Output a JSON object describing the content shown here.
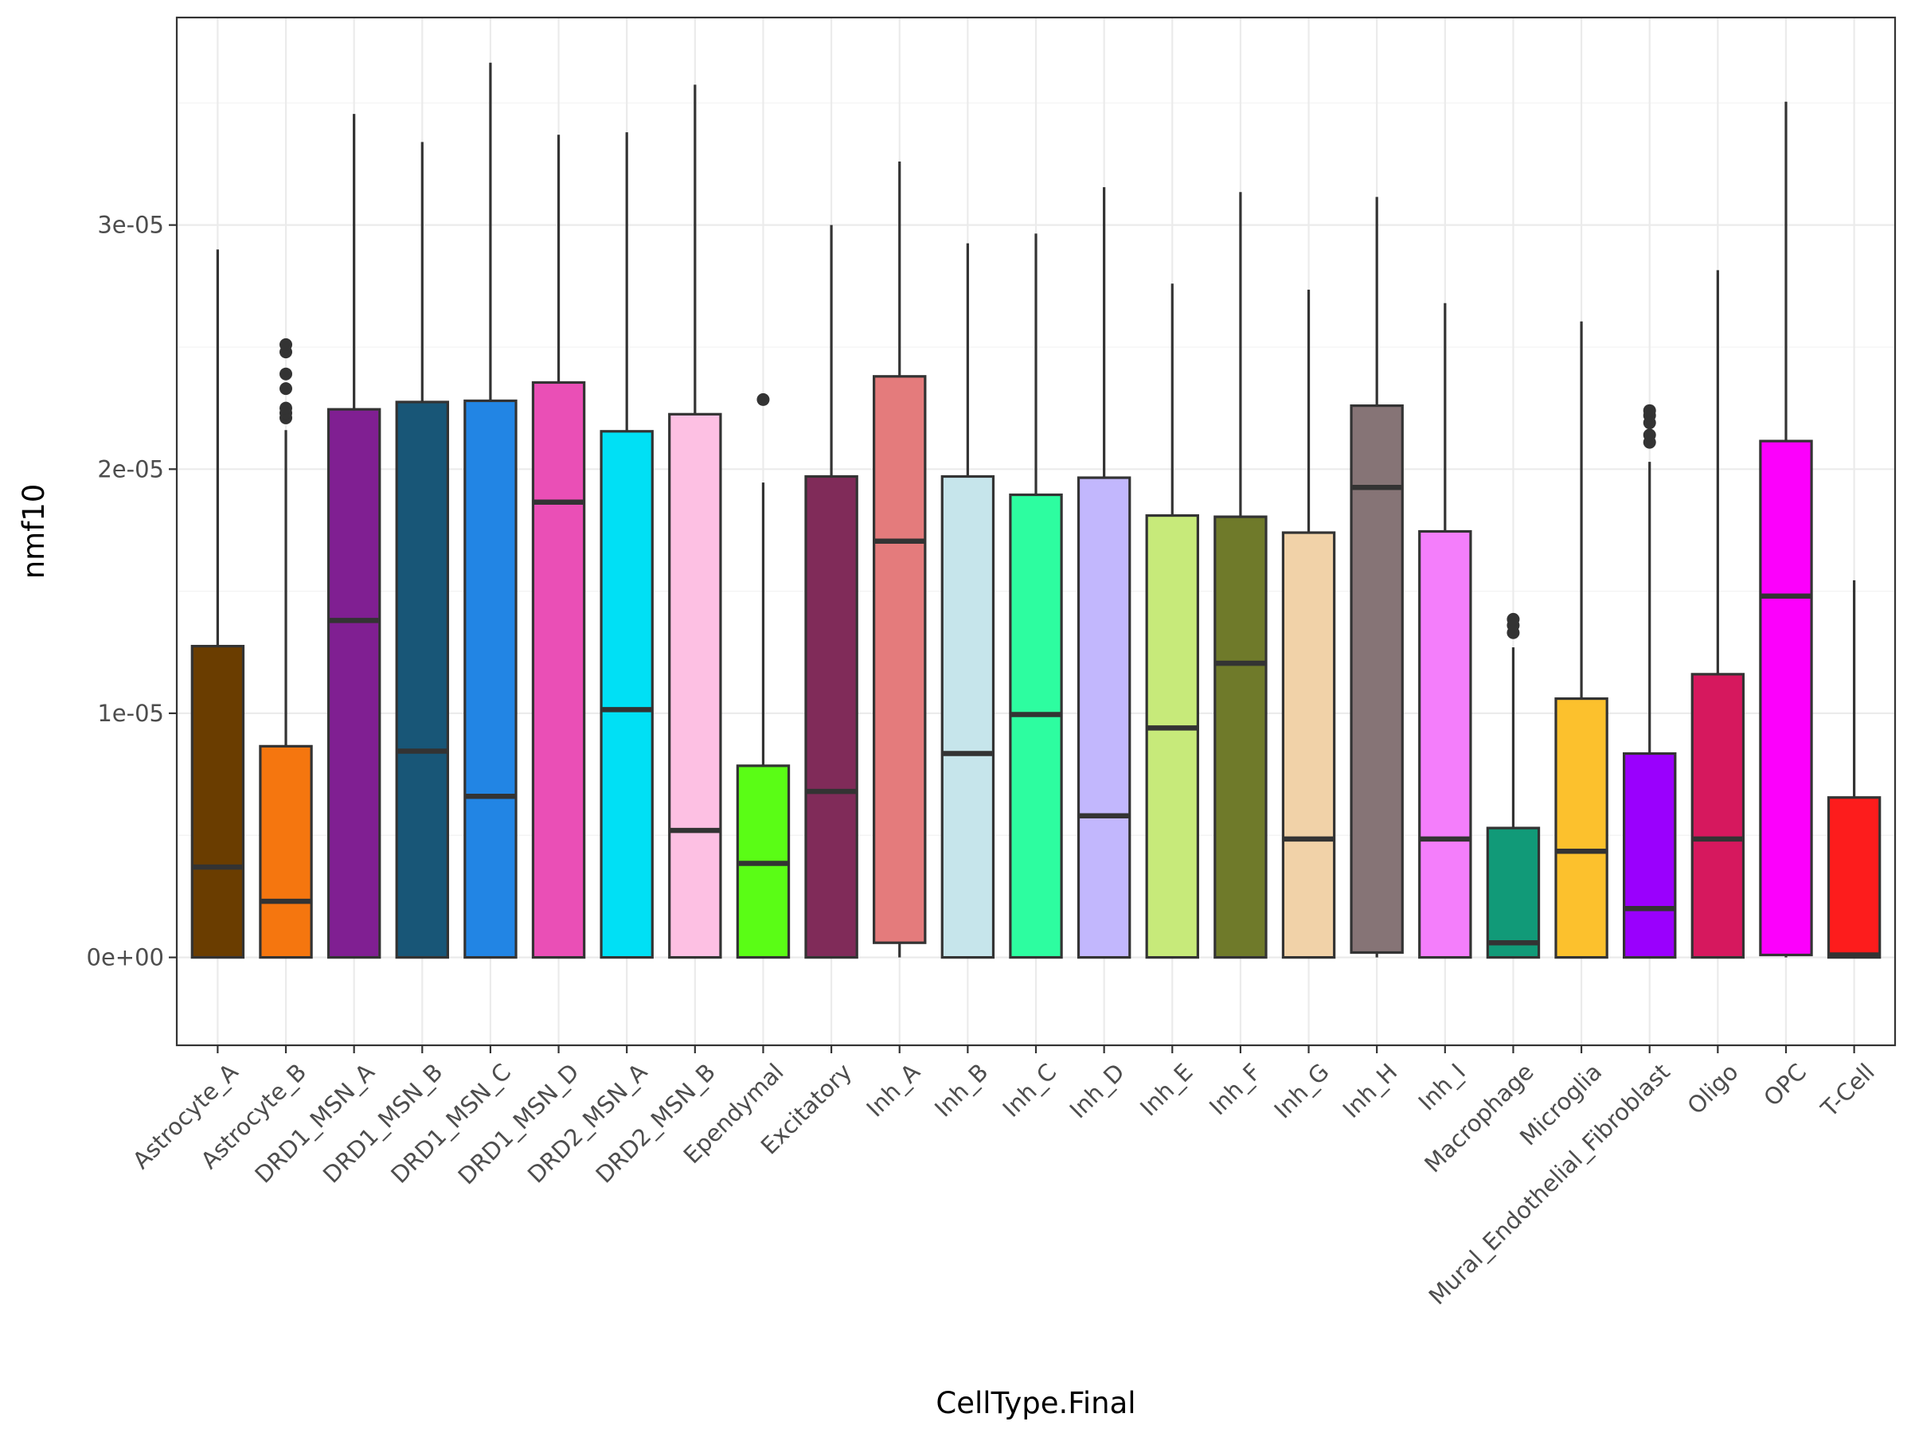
{
  "chart_data": {
    "type": "box",
    "xlabel": "CellType.Final",
    "ylabel": "nmf10",
    "ylim": [
      -3.6e-06,
      3.85e-05
    ],
    "yticks": [
      {
        "value": 0,
        "label": "0e+00"
      },
      {
        "value": 1e-05,
        "label": "1e-05"
      },
      {
        "value": 2e-05,
        "label": "2e-05"
      },
      {
        "value": 3e-05,
        "label": "3e-05"
      }
    ],
    "grid": true,
    "categories": [
      {
        "label": "Astrocyte_A",
        "color": "#6A3D00",
        "whisker_low": 0,
        "q1": 0,
        "median": 3.7e-06,
        "q3": 1.275e-05,
        "whisker_high": 2.9e-05,
        "outliers": []
      },
      {
        "label": "Astrocyte_B",
        "color": "#F5760F",
        "whisker_low": 0,
        "q1": 0,
        "median": 2.3e-06,
        "q3": 8.65e-06,
        "whisker_high": 2.16e-05,
        "outliers": [
          2.21e-05,
          2.23e-05,
          2.25e-05,
          2.33e-05,
          2.39e-05,
          2.48e-05,
          2.51e-05
        ]
      },
      {
        "label": "DRD1_MSN_A",
        "color": "#801F92",
        "whisker_low": 0,
        "q1": 0,
        "median": 1.38e-05,
        "q3": 2.245e-05,
        "whisker_high": 3.455e-05,
        "outliers": []
      },
      {
        "label": "DRD1_MSN_B",
        "color": "#185677",
        "whisker_low": 0,
        "q1": 0,
        "median": 8.45e-06,
        "q3": 2.275e-05,
        "whisker_high": 3.34e-05,
        "outliers": []
      },
      {
        "label": "DRD1_MSN_C",
        "color": "#2285E4",
        "whisker_low": 0,
        "q1": 0,
        "median": 6.6e-06,
        "q3": 2.28e-05,
        "whisker_high": 3.665e-05,
        "outliers": []
      },
      {
        "label": "DRD1_MSN_D",
        "color": "#EA4FB6",
        "whisker_low": 0,
        "q1": 0,
        "median": 1.865e-05,
        "q3": 2.355e-05,
        "whisker_high": 3.37e-05,
        "outliers": []
      },
      {
        "label": "DRD2_MSN_A",
        "color": "#00E0F5",
        "whisker_low": 0,
        "q1": 0,
        "median": 1.015e-05,
        "q3": 2.155e-05,
        "whisker_high": 3.38e-05,
        "outliers": []
      },
      {
        "label": "DRD2_MSN_B",
        "color": "#FDC0E3",
        "whisker_low": 0,
        "q1": 0,
        "median": 5.2e-06,
        "q3": 2.225e-05,
        "whisker_high": 3.575e-05,
        "outliers": []
      },
      {
        "label": "Ependymal",
        "color": "#5AFD15",
        "whisker_low": 0,
        "q1": 0,
        "median": 3.85e-06,
        "q3": 7.85e-06,
        "whisker_high": 1.945e-05,
        "outliers": [
          2.285e-05
        ]
      },
      {
        "label": "Excitatory",
        "color": "#802B59",
        "whisker_low": 0,
        "q1": 0,
        "median": 6.8e-06,
        "q3": 1.97e-05,
        "whisker_high": 3e-05,
        "outliers": []
      },
      {
        "label": "Inh_A",
        "color": "#E47B7C",
        "whisker_low": 0,
        "q1": 6e-07,
        "median": 1.705e-05,
        "q3": 2.38e-05,
        "whisker_high": 3.26e-05,
        "outliers": []
      },
      {
        "label": "Inh_B",
        "color": "#C6E5EB",
        "whisker_low": 0,
        "q1": 0,
        "median": 8.35e-06,
        "q3": 1.97e-05,
        "whisker_high": 2.925e-05,
        "outliers": []
      },
      {
        "label": "Inh_C",
        "color": "#2DFDA0",
        "whisker_low": 0,
        "q1": 0,
        "median": 9.95e-06,
        "q3": 1.895e-05,
        "whisker_high": 2.965e-05,
        "outliers": []
      },
      {
        "label": "Inh_D",
        "color": "#C2B7FD",
        "whisker_low": 0,
        "q1": 0,
        "median": 5.8e-06,
        "q3": 1.965e-05,
        "whisker_high": 3.155e-05,
        "outliers": []
      },
      {
        "label": "Inh_E",
        "color": "#C7EA7A",
        "whisker_low": 0,
        "q1": 0,
        "median": 9.4e-06,
        "q3": 1.81e-05,
        "whisker_high": 2.76e-05,
        "outliers": []
      },
      {
        "label": "Inh_F",
        "color": "#6F7A2A",
        "whisker_low": 0,
        "q1": 0,
        "median": 1.205e-05,
        "q3": 1.805e-05,
        "whisker_high": 3.135e-05,
        "outliers": []
      },
      {
        "label": "Inh_G",
        "color": "#F1D2A8",
        "whisker_low": 0,
        "q1": 0,
        "median": 4.85e-06,
        "q3": 1.74e-05,
        "whisker_high": 2.735e-05,
        "outliers": []
      },
      {
        "label": "Inh_H",
        "color": "#867476",
        "whisker_low": 0,
        "q1": 2e-07,
        "median": 1.925e-05,
        "q3": 2.26e-05,
        "whisker_high": 3.115e-05,
        "outliers": []
      },
      {
        "label": "Inh_I",
        "color": "#F47EFB",
        "whisker_low": 0,
        "q1": 0,
        "median": 4.85e-06,
        "q3": 1.745e-05,
        "whisker_high": 2.68e-05,
        "outliers": []
      },
      {
        "label": "Macrophage",
        "color": "#119A78",
        "whisker_low": 0,
        "q1": 0,
        "median": 6e-07,
        "q3": 5.3e-06,
        "whisker_high": 1.27e-05,
        "outliers": [
          1.33e-05,
          1.36e-05,
          1.385e-05
        ]
      },
      {
        "label": "Microglia",
        "color": "#FCC12D",
        "whisker_low": 0,
        "q1": 0,
        "median": 4.35e-06,
        "q3": 1.06e-05,
        "whisker_high": 2.605e-05,
        "outliers": []
      },
      {
        "label": "Mural_Endothelial_Fibroblast",
        "color": "#9A00FD",
        "whisker_low": 0,
        "q1": 0,
        "median": 2e-06,
        "q3": 8.35e-06,
        "whisker_high": 2.03e-05,
        "outliers": [
          2.11e-05,
          2.14e-05,
          2.19e-05,
          2.22e-05,
          2.24e-05
        ]
      },
      {
        "label": "Oligo",
        "color": "#D6185E",
        "whisker_low": 0,
        "q1": 0,
        "median": 4.85e-06,
        "q3": 1.16e-05,
        "whisker_high": 2.815e-05,
        "outliers": []
      },
      {
        "label": "OPC",
        "color": "#FC00FC",
        "whisker_low": 0,
        "q1": 1e-07,
        "median": 1.48e-05,
        "q3": 2.115e-05,
        "whisker_high": 3.505e-05,
        "outliers": []
      },
      {
        "label": "T-Cell",
        "color": "#FD1C1C",
        "whisker_low": 0,
        "q1": 0,
        "median": 1e-07,
        "q3": 6.55e-06,
        "whisker_high": 1.545e-05,
        "outliers": []
      }
    ]
  }
}
